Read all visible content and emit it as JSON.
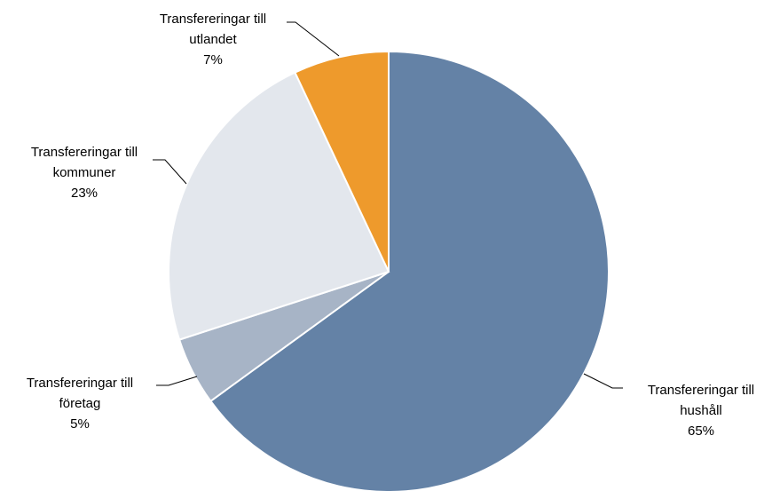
{
  "chart_data": {
    "type": "pie",
    "categories": [
      "Transfereringar till hushåll",
      "Transfereringar till företag",
      "Transfereringar till kommuner",
      "Transfereringar till utlandet"
    ],
    "values": [
      65,
      5,
      23,
      7
    ],
    "value_labels": [
      "65%",
      "5%",
      "23%",
      "7%"
    ],
    "colors": [
      "#6482a6",
      "#a7b4c6",
      "#e3e7ed",
      "#ee9a2c"
    ]
  }
}
